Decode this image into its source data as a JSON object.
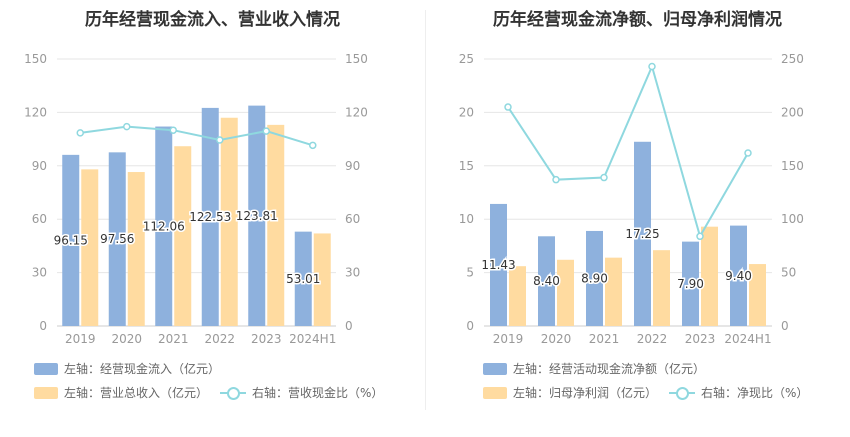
{
  "colors": {
    "bar1": "#8eb1dd",
    "bar2": "#ffdba0",
    "line": "#8fd8df",
    "grid": "#e6e6e6",
    "axis": "#999999"
  },
  "chart_data": [
    {
      "type": "bar",
      "title": "历年经营现金流入、营业收入情况",
      "categories": [
        "2019",
        "2020",
        "2021",
        "2022",
        "2023",
        "2024H1"
      ],
      "ylim_left": [
        0,
        150
      ],
      "ylim_right": [
        0,
        150
      ],
      "left_ticks": [
        "0",
        "30",
        "60",
        "90",
        "120",
        "150"
      ],
      "right_ticks": [
        "0",
        "30",
        "60",
        "90",
        "120",
        "150"
      ],
      "series": [
        {
          "name": "左轴：经营现金流入（亿元）",
          "axis": "left",
          "type": "bar",
          "values": [
            96.15,
            97.56,
            112.06,
            122.53,
            123.81,
            53.01
          ],
          "labels": [
            "96.15",
            "97.56",
            "112.06",
            "122.53",
            "123.81",
            "53.01"
          ]
        },
        {
          "name": "左轴：营业总收入（亿元）",
          "axis": "left",
          "type": "bar",
          "values": [
            88,
            86.5,
            101,
            117,
            113,
            52
          ]
        },
        {
          "name": "右轴：营收现金比（%）",
          "axis": "right",
          "type": "line",
          "values": [
            108.5,
            112,
            110,
            104.5,
            109.5,
            101.5
          ]
        }
      ]
    },
    {
      "type": "bar",
      "title": "历年经营现金流净额、归母净利润情况",
      "categories": [
        "2019",
        "2020",
        "2021",
        "2022",
        "2023",
        "2024H1"
      ],
      "ylim_left": [
        0,
        25
      ],
      "ylim_right": [
        0,
        250
      ],
      "left_ticks": [
        "0",
        "5",
        "10",
        "15",
        "20",
        "25"
      ],
      "right_ticks": [
        "0",
        "50",
        "100",
        "150",
        "200",
        "250"
      ],
      "series": [
        {
          "name": "左轴：经营活动现金流净额（亿元）",
          "axis": "left",
          "type": "bar",
          "values": [
            11.43,
            8.4,
            8.9,
            17.25,
            7.9,
            9.4
          ],
          "labels": [
            "11.43",
            "8.40",
            "8.90",
            "17.25",
            "7.90",
            "9.40"
          ]
        },
        {
          "name": "左轴：归母净利润（亿元）",
          "axis": "left",
          "type": "bar",
          "values": [
            5.6,
            6.2,
            6.4,
            7.1,
            9.3,
            5.8
          ]
        },
        {
          "name": "右轴：净现比（%）",
          "axis": "right",
          "type": "line",
          "values": [
            205,
            137,
            139,
            243,
            84,
            162
          ]
        }
      ]
    }
  ]
}
